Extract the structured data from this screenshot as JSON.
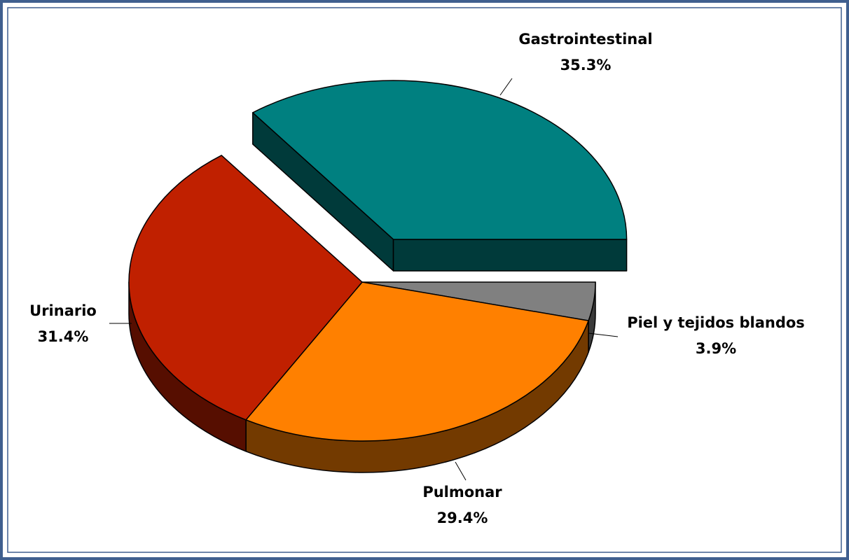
{
  "chart_data": {
    "type": "pie",
    "categories": [
      "Piel y tejidos blandos",
      "Pulmonar",
      "Urinario",
      "Gastrointestinal"
    ],
    "values": [
      3.9,
      29.4,
      31.4,
      35.3
    ],
    "value_labels": [
      "3.9%",
      "29.4%",
      "31.4%",
      "35.3%"
    ],
    "colors": [
      "#808080",
      "#ff8000",
      "#c02000",
      "#008080"
    ],
    "exploded": "Gastrointestinal"
  }
}
